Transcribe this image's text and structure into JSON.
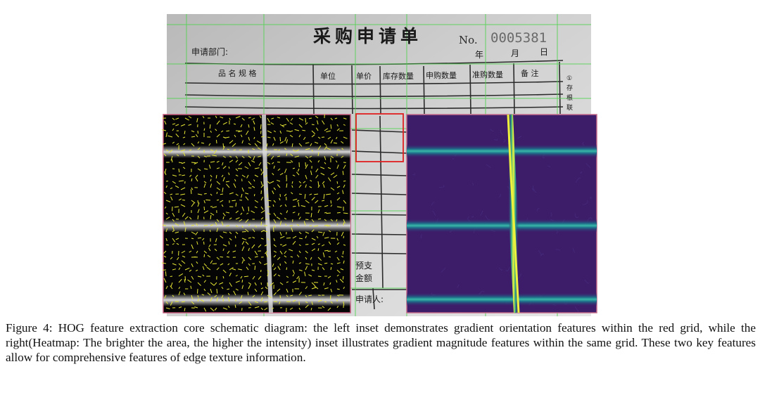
{
  "form": {
    "title": "采购申请单",
    "number_prefix": "No.",
    "number": "0005381",
    "dept_label": "申请部门:",
    "date_year": "年",
    "date_month": "月",
    "date_day": "日",
    "columns": [
      "品 名 规 格",
      "单位",
      "单价",
      "库存数量",
      "申购数量",
      "准购数量",
      "备 注"
    ],
    "side_note": [
      "①",
      "存",
      "根",
      "联"
    ],
    "prepay_label": [
      "预支",
      "金额"
    ],
    "applicant_label": "申请人:"
  },
  "caption": {
    "figure_label": "Figure 4:",
    "text": "HOG feature extraction core schematic diagram: the left inset demonstrates gradient orientation features within the red grid, while the right(Heatmap: The brighter the area, the higher the intensity) inset illustrates gradient magnitude features within the same grid. These two key features allow for comprehensive features of edge texture information."
  },
  "colors": {
    "paper": "#c9c9c9",
    "grid_green": "#4fd44f",
    "red_box": "#e02020",
    "hog_bg": "#050505",
    "hog_arrow": "#e6e635",
    "heat_bg": "#3d1c6a",
    "heat_line": "#2fa6a0",
    "heat_peak": "#e9f03a"
  }
}
